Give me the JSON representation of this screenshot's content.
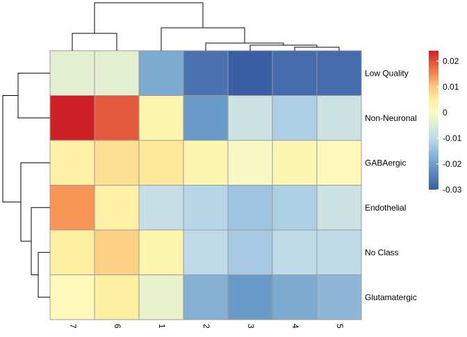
{
  "chart_data": {
    "type": "heatmap",
    "title": "",
    "xlabel": "",
    "ylabel": "",
    "columns": [
      "7",
      "6",
      "1",
      "2",
      "3",
      "4",
      "5"
    ],
    "rows": [
      "Low Quality",
      "Non-Neuronal",
      "GABAergic",
      "Endothelial",
      "No Class",
      "Glutamatergic"
    ],
    "values": [
      [
        -0.004,
        -0.004,
        -0.018,
        -0.027,
        -0.03,
        -0.028,
        -0.028
      ],
      [
        0.024,
        0.019,
        0.003,
        -0.021,
        -0.008,
        -0.012,
        -0.008
      ],
      [
        0.004,
        0.007,
        0.006,
        0.002,
        -0.001,
        0.002,
        0.001
      ],
      [
        0.014,
        0.004,
        -0.009,
        -0.011,
        -0.014,
        -0.012,
        -0.008
      ],
      [
        0.005,
        0.009,
        0.003,
        -0.01,
        -0.013,
        -0.01,
        -0.01
      ],
      [
        0.001,
        0.005,
        -0.003,
        -0.017,
        -0.021,
        -0.018,
        -0.016
      ]
    ],
    "color_scale": {
      "min": -0.03,
      "max": 0.024,
      "stops": [
        {
          "value": -0.03,
          "color": "#3B5FA4"
        },
        {
          "value": -0.02,
          "color": "#6E9FCB"
        },
        {
          "value": -0.01,
          "color": "#BFDBEA"
        },
        {
          "value": 0.0,
          "color": "#FCFBC0"
        },
        {
          "value": 0.005,
          "color": "#FEEFA0"
        },
        {
          "value": 0.01,
          "color": "#FDCA7E"
        },
        {
          "value": 0.015,
          "color": "#F7884C"
        },
        {
          "value": 0.024,
          "color": "#CF2027"
        }
      ],
      "ticks": [
        0.02,
        0.01,
        0,
        -0.01,
        -0.02,
        -0.03
      ],
      "tick_labels": [
        "0.02",
        "0.01",
        "0",
        "-0.01",
        "-0.02",
        "-0.03"
      ]
    },
    "cell_border_color": "#9a9a9a",
    "dendrogram_line_color": "#000000",
    "column_dendrogram": "((7,6),(1,(2,(3,(4,5)))))",
    "row_dendrogram": "((Low Quality,Non-Neuronal),(GABAergic,(Endothelial,(No Class,Glutamatergic))))"
  }
}
